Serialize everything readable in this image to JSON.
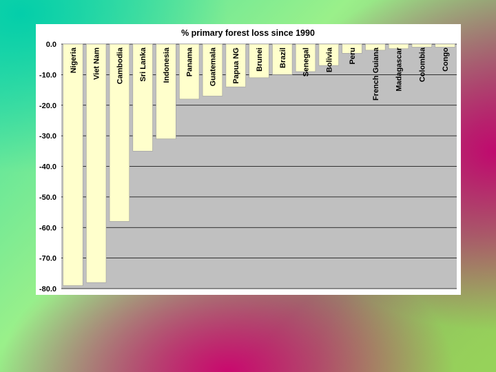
{
  "chart_data": {
    "type": "bar",
    "title": "% primary forest loss since 1990",
    "categories": [
      "Nigeria",
      "Viet Nam",
      "Cambodia",
      "Sri Lanka",
      "Indonesia",
      "Panama",
      "Guatemala",
      "Papua NG",
      "Brunei",
      "Brazil",
      "Senegal",
      "Bolivia",
      "Peru",
      "French Guiana",
      "Madagascar",
      "Colombia",
      "Congo"
    ],
    "values": [
      -79.0,
      -78.0,
      -58.0,
      -35.0,
      -31.0,
      -18.0,
      -17.0,
      -14.0,
      -11.0,
      -10.0,
      -9.0,
      -7.0,
      -3.0,
      -2.0,
      -1.5,
      -1.0,
      -1.0
    ],
    "ylim": [
      -80,
      0
    ],
    "yticks": [
      "0.0",
      "-10.0",
      "-20.0",
      "-30.0",
      "-40.0",
      "-50.0",
      "-60.0",
      "-70.0",
      "-80.0"
    ],
    "xlabel": "",
    "ylabel": "",
    "grid": true,
    "colors": {
      "bar_fill": "#ffffcc",
      "bar_stroke": "#9e9e9e",
      "plot_background": "#c0c0c0",
      "gridline": "#000000",
      "panel_background": "#ffffff"
    }
  }
}
